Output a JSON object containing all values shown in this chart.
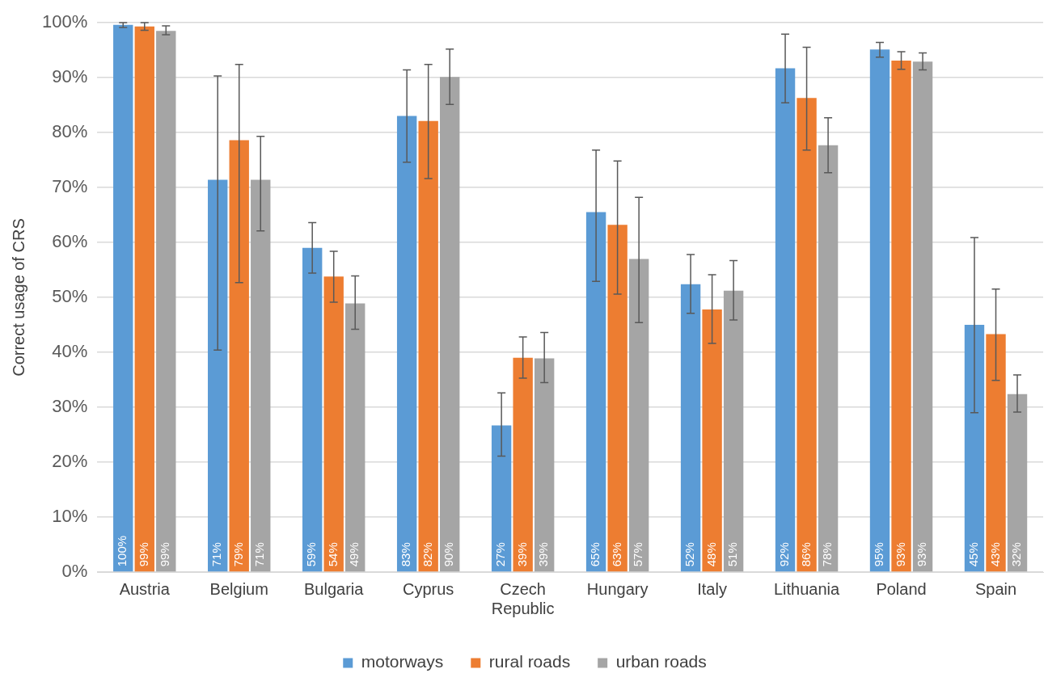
{
  "chart_data": {
    "type": "bar",
    "ylabel": "Correct usage of CRS",
    "categories": [
      "Austria",
      "Belgium",
      "Bulgaria",
      "Cyprus",
      "Czech Republic",
      "Hungary",
      "Italy",
      "Lithuania",
      "Poland",
      "Spain"
    ],
    "series": [
      {
        "name": "motorways",
        "color": "#5b9bd5",
        "values": [
          99.6,
          71.4,
          59.0,
          83.0,
          26.7,
          65.5,
          52.4,
          91.7,
          95.1,
          45.0
        ],
        "errors": [
          [
            99.1,
            100
          ],
          [
            40.4,
            90.3
          ],
          [
            54.4,
            63.6
          ],
          [
            74.6,
            91.4
          ],
          [
            21.1,
            32.6
          ],
          [
            52.9,
            76.8
          ],
          [
            47.1,
            57.8
          ],
          [
            85.4,
            97.9
          ],
          [
            93.7,
            96.4
          ],
          [
            29.0,
            60.9
          ]
        ],
        "value_labels": [
          "100%",
          "71%",
          "59%",
          "83%",
          "27%",
          "65%",
          "52%",
          "92%",
          "95%",
          "45%"
        ]
      },
      {
        "name": "rural roads",
        "color": "#ed7d31",
        "values": [
          99.3,
          78.6,
          53.8,
          82.1,
          39.0,
          63.2,
          47.8,
          86.3,
          93.1,
          43.3
        ],
        "errors": [
          [
            98.6,
            100
          ],
          [
            52.7,
            92.4
          ],
          [
            49.1,
            58.4
          ],
          [
            71.6,
            92.4
          ],
          [
            35.3,
            42.8
          ],
          [
            50.6,
            74.8
          ],
          [
            41.6,
            54.1
          ],
          [
            76.8,
            95.5
          ],
          [
            91.5,
            94.7
          ],
          [
            34.9,
            51.5
          ]
        ],
        "value_labels": [
          "99%",
          "79%",
          "54%",
          "82%",
          "39%",
          "63%",
          "48%",
          "86%",
          "93%",
          "43%"
        ]
      },
      {
        "name": "urban roads",
        "color": "#a5a5a5",
        "values": [
          98.5,
          71.4,
          48.9,
          90.1,
          38.9,
          57.0,
          51.2,
          77.7,
          92.9,
          32.4
        ],
        "errors": [
          [
            97.8,
            99.4
          ],
          [
            62.1,
            79.3
          ],
          [
            44.2,
            53.9
          ],
          [
            85.1,
            95.2
          ],
          [
            34.5,
            43.6
          ],
          [
            45.4,
            68.2
          ],
          [
            45.9,
            56.7
          ],
          [
            72.7,
            82.7
          ],
          [
            91.4,
            94.5
          ],
          [
            29.1,
            35.9
          ]
        ],
        "value_labels": [
          "99%",
          "71%",
          "49%",
          "90%",
          "39%",
          "57%",
          "51%",
          "78%",
          "93%",
          "32%"
        ]
      }
    ],
    "ylim": [
      0,
      100
    ],
    "yticks": [
      {
        "value": 0,
        "label": "0%"
      },
      {
        "value": 10,
        "label": "10%"
      },
      {
        "value": 20,
        "label": "20%"
      },
      {
        "value": 30,
        "label": "30%"
      },
      {
        "value": 40,
        "label": "40%"
      },
      {
        "value": 50,
        "label": "50%"
      },
      {
        "value": 60,
        "label": "60%"
      },
      {
        "value": 70,
        "label": "70%"
      },
      {
        "value": 80,
        "label": "80%"
      },
      {
        "value": 90,
        "label": "90%"
      },
      {
        "value": 100,
        "label": "100%"
      }
    ],
    "grid": "y",
    "legend": "bottom"
  }
}
